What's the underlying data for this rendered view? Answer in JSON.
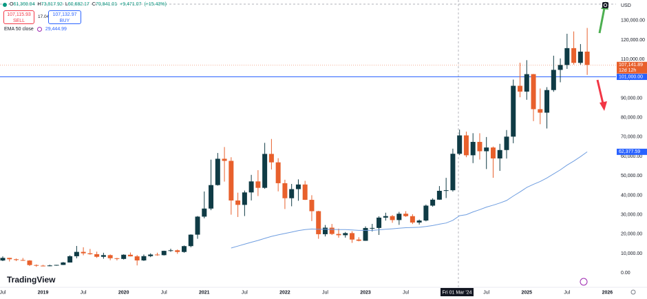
{
  "chart_data": {
    "type": "candlestick",
    "categories": [
      "Jul",
      null,
      null,
      null,
      null,
      null,
      "2019",
      null,
      null,
      null,
      null,
      null,
      "Jul",
      null,
      null,
      null,
      null,
      null,
      "2020",
      null,
      null,
      null,
      null,
      null,
      "Jul",
      null,
      null,
      null,
      null,
      null,
      "2021",
      null,
      null,
      null,
      null,
      null,
      "Jul",
      null,
      null,
      null,
      null,
      null,
      "2022",
      null,
      null,
      null,
      null,
      null,
      "Jul",
      null,
      null,
      null,
      null,
      null,
      "2023",
      null,
      null,
      null,
      null,
      null,
      "Jul",
      null,
      null,
      null,
      null,
      null,
      null,
      null,
      null,
      null,
      null,
      null,
      "Jul",
      null,
      null,
      null,
      null,
      null,
      "2025",
      null,
      null,
      null,
      null,
      null,
      "Jul",
      null,
      null,
      null,
      null,
      null,
      "2026"
    ],
    "open": [
      6390,
      7730,
      7030,
      6630,
      6370,
      4040,
      3740,
      3460,
      3850,
      4110,
      5350,
      8580,
      10820,
      10090,
      9630,
      8290,
      9150,
      7550,
      7190,
      9350,
      8520,
      6420,
      8630,
      9450,
      9140,
      11350,
      11650,
      10780,
      13790,
      19700,
      28990,
      33140,
      45240,
      58800,
      57720,
      37300,
      35040,
      41460,
      47130,
      43820,
      61300,
      56950,
      46210,
      38470,
      43160,
      45540,
      37640,
      31790,
      19930,
      23290,
      20050,
      19420,
      20490,
      17170,
      16540,
      23130,
      23150,
      28480,
      29250,
      27220,
      30480,
      29230,
      25940,
      26970,
      34650,
      37720,
      42280,
      42580,
      61369.94,
      70841.01,
      60600,
      67490,
      62680,
      64600,
      58970,
      63300,
      70200,
      96400,
      93400,
      102400,
      84350,
      82550,
      94200,
      104600,
      107100,
      115800,
      108200,
      114000,
      null,
      null,
      null
    ],
    "high": [
      8490,
      7760,
      7410,
      7680,
      6580,
      4380,
      4140,
      4210,
      4140,
      5630,
      9070,
      13880,
      13200,
      12330,
      10950,
      10370,
      9510,
      7750,
      9580,
      10500,
      9190,
      9470,
      10080,
      10390,
      11440,
      12470,
      12050,
      14100,
      19860,
      29300,
      41950,
      58350,
      61780,
      64850,
      59590,
      41330,
      42410,
      50500,
      52920,
      66999,
      69000,
      59100,
      47990,
      45820,
      48190,
      47440,
      40020,
      31990,
      24670,
      25200,
      22800,
      21090,
      21450,
      18390,
      23960,
      25250,
      29180,
      31000,
      29820,
      31430,
      31800,
      30200,
      27490,
      35200,
      38430,
      44730,
      48970,
      64000,
      73817.92,
      72800,
      71980,
      71950,
      70000,
      65100,
      66500,
      73600,
      99600,
      108300,
      109600,
      102500,
      95000,
      95700,
      111900,
      110500,
      123200,
      124400,
      117900,
      126200,
      null,
      null,
      null
    ],
    "low": [
      6070,
      5880,
      6100,
      6200,
      3550,
      3130,
      3350,
      3390,
      3680,
      4050,
      5330,
      7520,
      9070,
      9350,
      7710,
      7300,
      6530,
      6430,
      6870,
      8460,
      3850,
      6150,
      8120,
      8830,
      8960,
      10880,
      9820,
      10380,
      13220,
      17570,
      28130,
      32300,
      44960,
      47040,
      30000,
      28800,
      29280,
      37330,
      39600,
      43300,
      53260,
      42000,
      32900,
      34320,
      37150,
      37580,
      26700,
      17570,
      18780,
      19520,
      18120,
      18180,
      15480,
      16260,
      16500,
      21350,
      19550,
      26940,
      25810,
      24750,
      28860,
      25170,
      24900,
      26560,
      34100,
      37620,
      38550,
      41880,
      60682.17,
      59600,
      56550,
      58400,
      53500,
      49000,
      52550,
      58900,
      66800,
      90500,
      89200,
      78200,
      76600,
      74400,
      93300,
      98200,
      105100,
      107300,
      107300,
      102000,
      null,
      null,
      null
    ],
    "close": [
      7730,
      7030,
      6630,
      6370,
      4040,
      3740,
      3460,
      3850,
      4110,
      5350,
      8580,
      10820,
      10090,
      9630,
      8290,
      9150,
      7550,
      7190,
      9350,
      8520,
      6420,
      8630,
      9450,
      9140,
      11350,
      11650,
      10780,
      13790,
      19700,
      28990,
      33140,
      45240,
      58800,
      57720,
      37300,
      35040,
      41460,
      47130,
      43820,
      61300,
      56950,
      46210,
      38470,
      43160,
      45540,
      37640,
      31790,
      19930,
      23290,
      20050,
      19420,
      20490,
      17170,
      16540,
      23130,
      23150,
      28480,
      29250,
      27220,
      30480,
      29230,
      25940,
      26970,
      34650,
      37720,
      42280,
      42580,
      61369.94,
      70841.01,
      60600,
      67490,
      62680,
      64600,
      58970,
      63300,
      70200,
      96400,
      93400,
      102400,
      84350,
      82550,
      94200,
      104600,
      107100,
      115800,
      108200,
      114000,
      107141.89,
      null,
      null,
      null
    ],
    "up_color": "#0f3b45",
    "down_color": "#e8602c",
    "ema": {
      "name": "EMA 50 close",
      "color": "#6e9de0",
      "values": [
        null,
        null,
        null,
        null,
        null,
        null,
        null,
        null,
        null,
        null,
        null,
        null,
        null,
        null,
        null,
        null,
        null,
        null,
        null,
        null,
        null,
        null,
        null,
        null,
        null,
        null,
        null,
        null,
        null,
        null,
        null,
        null,
        null,
        null,
        12800,
        13800,
        14800,
        15800,
        16700,
        17800,
        18800,
        19600,
        20300,
        21000,
        21800,
        22300,
        22600,
        22500,
        22500,
        22400,
        22300,
        22300,
        22100,
        21900,
        21900,
        21900,
        22200,
        22500,
        22700,
        23000,
        23300,
        23400,
        23500,
        23900,
        24400,
        25100,
        25700,
        27100,
        29444.99,
        30000,
        31400,
        32600,
        33900,
        34900,
        36000,
        37300,
        39600,
        41700,
        44000,
        45600,
        47100,
        48900,
        51000,
        53100,
        55500,
        57600,
        59900,
        62377.59,
        null,
        null,
        null
      ]
    },
    "ylim": [
      -6000,
      140600
    ],
    "yticks": [
      {
        "value": 0,
        "label": "0.00"
      },
      {
        "value": 10000,
        "label": "10,000.00"
      },
      {
        "value": 20000,
        "label": "20,000.00"
      },
      {
        "value": 30000,
        "label": "30,000.00"
      },
      {
        "value": 40000,
        "label": "40,000.00"
      },
      {
        "value": 50000,
        "label": "50,000.00"
      },
      {
        "value": 60000,
        "label": "60,000.00"
      },
      {
        "value": 70000,
        "label": "70,000.00"
      },
      {
        "value": 80000,
        "label": "80,000.00"
      },
      {
        "value": 90000,
        "label": "90,000.00"
      },
      {
        "value": 100000,
        "label": "100,000.00"
      },
      {
        "value": 110000,
        "label": "110,000.00"
      },
      {
        "value": 120000,
        "label": "120,000.00"
      },
      {
        "value": 130000,
        "label": "130,000.00"
      }
    ],
    "grid": false,
    "currency": "USD",
    "price_labels": [
      {
        "value": 107141.89,
        "label": "107,141.89",
        "countdown": "12d 12h",
        "color": "#e8602c"
      },
      {
        "value": 101000,
        "label": "101,000.00",
        "color": "#2962ff"
      },
      {
        "value": 62377.59,
        "label": "62,377.59",
        "color": "#2962ff"
      }
    ],
    "crosshair": {
      "open_label": "O",
      "open": "61,369.94",
      "high_label": "H",
      "high": "73,817.92",
      "low_label": "L",
      "low": "60,682.17",
      "close_label": "C",
      "close": "70,841.01",
      "change": "+9,471.07",
      "change_pct": "(+15.43%)",
      "date": "Fri 01 Mar '24"
    },
    "ema_legend_value": "29,444.99",
    "trade": {
      "sell_price": "107,115.93",
      "sell": "SELL",
      "spread": "17.04",
      "buy_price": "107,132.97",
      "buy": "BUY"
    },
    "brand": "TradingView"
  }
}
